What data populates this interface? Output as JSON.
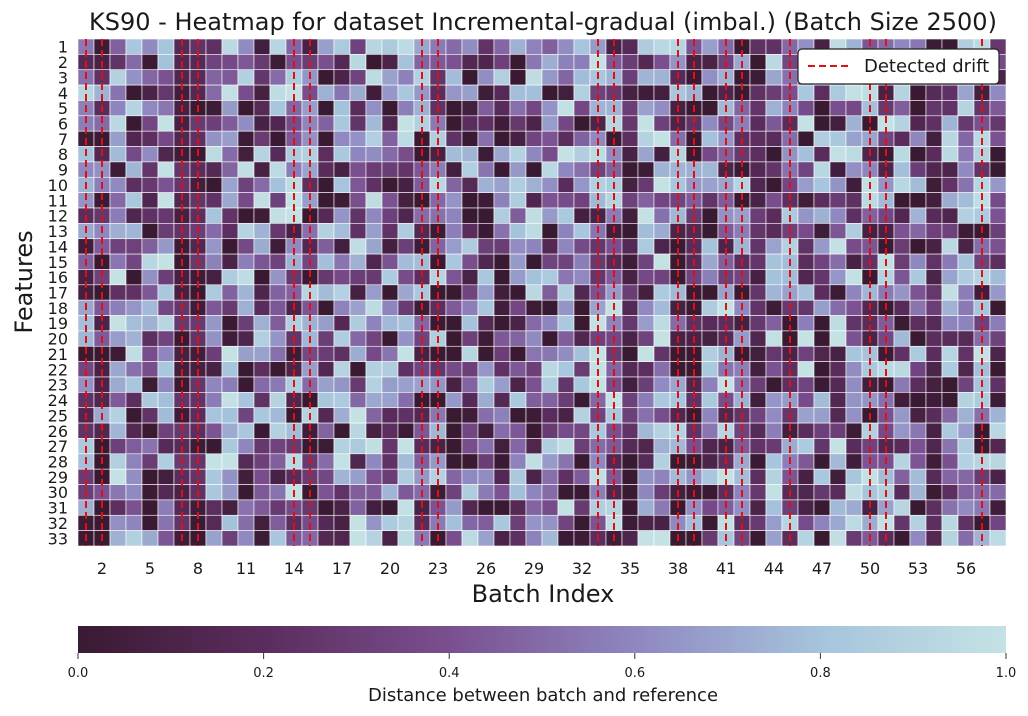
{
  "chart_data": {
    "type": "heatmap",
    "title": "KS90 - Heatmap for dataset Incremental-gradual (imbal.) (Batch Size 2500)",
    "xlabel": "Batch Index",
    "ylabel": "Features",
    "x_range": [
      1,
      58
    ],
    "y_categories": [
      "1",
      "2",
      "3",
      "4",
      "5",
      "6",
      "7",
      "8",
      "9",
      "10",
      "11",
      "12",
      "13",
      "14",
      "15",
      "16",
      "17",
      "18",
      "19",
      "20",
      "21",
      "22",
      "23",
      "24",
      "25",
      "26",
      "27",
      "28",
      "29",
      "30",
      "31",
      "32",
      "33"
    ],
    "x_tick_labels": [
      "2",
      "5",
      "8",
      "11",
      "14",
      "17",
      "20",
      "23",
      "26",
      "29",
      "32",
      "35",
      "38",
      "41",
      "44",
      "47",
      "50",
      "53",
      "56"
    ],
    "column_mean_distance": [
      0.38,
      0.22,
      0.55,
      0.42,
      0.41,
      0.57,
      0.1,
      0.13,
      0.5,
      0.47,
      0.43,
      0.52,
      0.48,
      0.5,
      0.41,
      0.36,
      0.46,
      0.49,
      0.45,
      0.38,
      0.53,
      0.45,
      0.45,
      0.4,
      0.42,
      0.35,
      0.4,
      0.35,
      0.45,
      0.48,
      0.52,
      0.42,
      0.56,
      0.5,
      0.15,
      0.56,
      0.6,
      0.45,
      0.25,
      0.32,
      0.55,
      0.35,
      0.15,
      0.45,
      0.45,
      0.5,
      0.4,
      0.55,
      0.45,
      0.48,
      0.52,
      0.42,
      0.35,
      0.18,
      0.45,
      0.52,
      0.5,
      0.4
    ],
    "detected_drift_batches": [
      1,
      2,
      7,
      8,
      14,
      15,
      22,
      23,
      33,
      34,
      38,
      39,
      41,
      42,
      45,
      50,
      51,
      57
    ],
    "legend_entries": [
      "Detected drift"
    ],
    "legend_position": "top-right",
    "colorbar": {
      "label": "Distance between batch and reference",
      "range": [
        0.0,
        1.0
      ],
      "ticks": [
        "0.0",
        "0.2",
        "0.4",
        "0.6",
        "0.8",
        "1.0"
      ],
      "orientation": "horizontal",
      "position": "bottom"
    },
    "colors": {
      "cmap": [
        "#3a1a33",
        "#5b2d5e",
        "#7a4f8f",
        "#8f87c0",
        "#a6c4dc",
        "#c4e2e4"
      ],
      "drift_line": "#e01010",
      "grid": "#ffffff"
    }
  }
}
